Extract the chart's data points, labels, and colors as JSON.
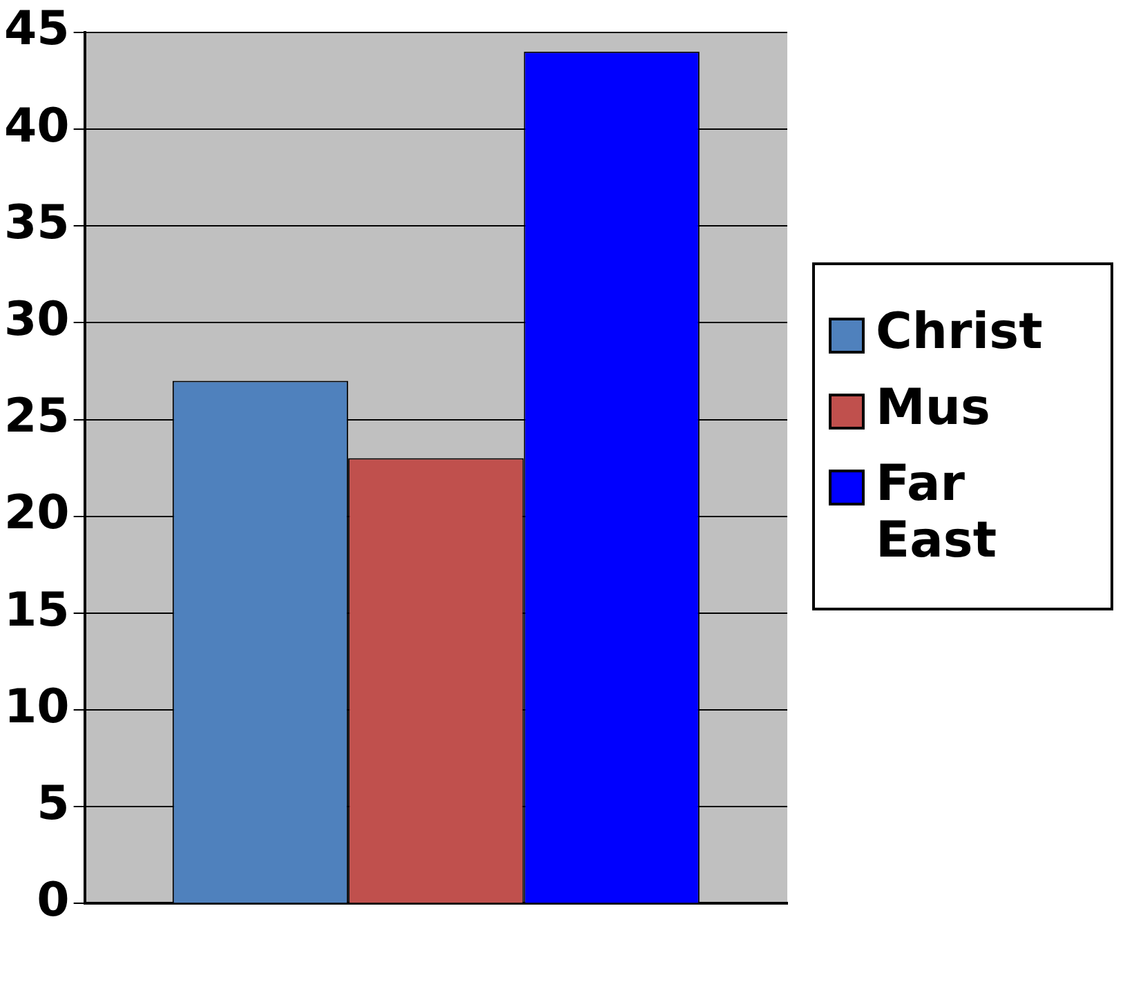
{
  "chart_data": {
    "type": "bar",
    "categories": [
      null
    ],
    "series": [
      {
        "name": "Christ",
        "color": "#4f81bd",
        "values": [
          27
        ]
      },
      {
        "name": "Mus",
        "color": "#c0504d",
        "values": [
          23
        ]
      },
      {
        "name": "Far East",
        "color": "#0000ff",
        "values": [
          44
        ]
      }
    ],
    "ylim": [
      0,
      45
    ],
    "yticks": [
      0,
      5,
      10,
      15,
      20,
      25,
      30,
      35,
      40,
      45
    ],
    "grid": "y",
    "legend": "right"
  }
}
